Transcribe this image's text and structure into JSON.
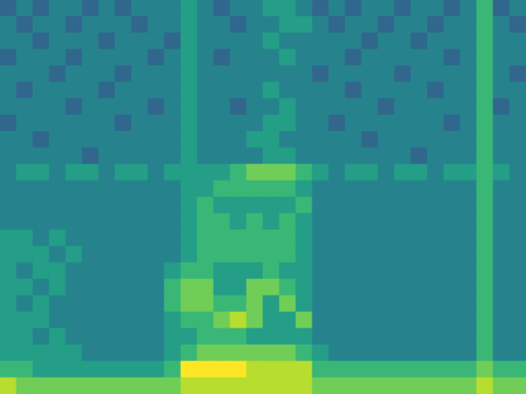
{
  "chart_data": {
    "type": "heatmap",
    "tick_labels": false,
    "grid": false,
    "cells": [
      [
        3,
        4,
        3,
        4,
        4,
        3,
        4,
        3,
        4,
        4,
        4,
        5,
        4,
        3,
        4,
        4,
        5,
        5,
        4,
        3,
        4,
        3,
        4,
        4,
        3,
        4,
        4,
        3,
        4,
        6,
        3,
        4
      ],
      [
        4,
        3,
        4,
        4,
        3,
        4,
        4,
        4,
        3,
        4,
        4,
        5,
        4,
        4,
        3,
        4,
        4,
        5,
        5,
        4,
        3,
        4,
        4,
        3,
        4,
        4,
        3,
        4,
        4,
        6,
        4,
        3
      ],
      [
        4,
        4,
        3,
        4,
        4,
        4,
        3,
        4,
        4,
        4,
        3,
        5,
        4,
        4,
        4,
        4,
        5,
        4,
        4,
        4,
        4,
        4,
        3,
        4,
        4,
        3,
        4,
        4,
        4,
        6,
        4,
        4
      ],
      [
        3,
        4,
        4,
        4,
        3,
        4,
        4,
        4,
        4,
        3,
        4,
        5,
        4,
        3,
        4,
        4,
        4,
        5,
        4,
        4,
        4,
        3,
        4,
        4,
        4,
        4,
        4,
        3,
        4,
        6,
        4,
        4
      ],
      [
        4,
        4,
        4,
        3,
        4,
        4,
        4,
        3,
        4,
        4,
        4,
        5,
        4,
        4,
        4,
        4,
        4,
        4,
        4,
        3,
        4,
        4,
        4,
        4,
        3,
        4,
        4,
        4,
        4,
        6,
        4,
        3
      ],
      [
        4,
        3,
        4,
        4,
        4,
        4,
        3,
        4,
        4,
        4,
        4,
        5,
        4,
        4,
        4,
        4,
        5,
        4,
        4,
        4,
        4,
        3,
        4,
        4,
        4,
        4,
        3,
        4,
        4,
        6,
        4,
        4
      ],
      [
        4,
        4,
        4,
        4,
        3,
        4,
        4,
        4,
        4,
        3,
        4,
        5,
        4,
        4,
        3,
        4,
        4,
        5,
        4,
        4,
        4,
        4,
        4,
        3,
        4,
        4,
        4,
        4,
        4,
        6,
        3,
        4
      ],
      [
        3,
        4,
        4,
        4,
        4,
        4,
        4,
        3,
        4,
        4,
        4,
        5,
        4,
        4,
        4,
        4,
        5,
        5,
        4,
        4,
        3,
        4,
        4,
        4,
        4,
        4,
        4,
        3,
        4,
        6,
        4,
        4
      ],
      [
        4,
        4,
        3,
        4,
        4,
        4,
        4,
        4,
        4,
        4,
        4,
        5,
        4,
        4,
        4,
        5,
        5,
        4,
        4,
        4,
        4,
        4,
        3,
        4,
        4,
        4,
        4,
        4,
        4,
        6,
        4,
        4
      ],
      [
        4,
        4,
        4,
        4,
        4,
        3,
        4,
        4,
        4,
        4,
        4,
        5,
        4,
        4,
        4,
        4,
        5,
        5,
        4,
        4,
        4,
        4,
        4,
        4,
        4,
        3,
        4,
        4,
        4,
        6,
        4,
        4
      ],
      [
        4,
        5,
        5,
        4,
        5,
        5,
        4,
        5,
        5,
        4,
        5,
        5,
        5,
        5,
        6,
        7,
        7,
        7,
        6,
        5,
        4,
        5,
        5,
        4,
        5,
        5,
        4,
        5,
        5,
        6,
        5,
        4
      ],
      [
        4,
        4,
        4,
        4,
        4,
        4,
        4,
        4,
        4,
        4,
        4,
        5,
        5,
        6,
        6,
        6,
        6,
        6,
        5,
        4,
        4,
        4,
        4,
        4,
        4,
        4,
        4,
        4,
        4,
        6,
        4,
        4
      ],
      [
        4,
        4,
        4,
        4,
        4,
        4,
        4,
        4,
        4,
        4,
        4,
        5,
        6,
        5,
        5,
        5,
        5,
        5,
        6,
        4,
        4,
        4,
        4,
        4,
        4,
        4,
        4,
        4,
        4,
        6,
        4,
        4
      ],
      [
        4,
        4,
        4,
        4,
        4,
        4,
        4,
        4,
        4,
        4,
        4,
        5,
        6,
        6,
        5,
        6,
        5,
        6,
        5,
        4,
        4,
        4,
        4,
        4,
        4,
        4,
        4,
        4,
        4,
        6,
        4,
        4
      ],
      [
        5,
        5,
        4,
        5,
        4,
        4,
        4,
        4,
        4,
        4,
        4,
        5,
        6,
        6,
        6,
        6,
        6,
        6,
        5,
        4,
        4,
        4,
        4,
        4,
        4,
        4,
        4,
        4,
        4,
        6,
        4,
        4
      ],
      [
        5,
        5,
        5,
        4,
        5,
        4,
        4,
        4,
        4,
        4,
        4,
        5,
        6,
        6,
        6,
        6,
        6,
        6,
        5,
        4,
        4,
        4,
        4,
        4,
        4,
        4,
        4,
        4,
        4,
        6,
        4,
        4
      ],
      [
        5,
        4,
        5,
        5,
        4,
        4,
        4,
        4,
        4,
        4,
        5,
        6,
        6,
        5,
        5,
        5,
        6,
        5,
        5,
        4,
        4,
        4,
        4,
        4,
        4,
        4,
        4,
        4,
        4,
        6,
        4,
        4
      ],
      [
        5,
        5,
        4,
        5,
        4,
        4,
        4,
        4,
        4,
        4,
        6,
        7,
        7,
        5,
        5,
        7,
        7,
        6,
        5,
        4,
        4,
        4,
        4,
        4,
        4,
        4,
        4,
        4,
        4,
        6,
        4,
        4
      ],
      [
        5,
        4,
        5,
        4,
        4,
        4,
        4,
        4,
        4,
        4,
        6,
        7,
        7,
        6,
        6,
        7,
        5,
        7,
        5,
        4,
        4,
        4,
        4,
        4,
        4,
        4,
        4,
        4,
        4,
        6,
        4,
        4
      ],
      [
        5,
        5,
        5,
        4,
        4,
        4,
        4,
        4,
        4,
        4,
        5,
        6,
        6,
        7,
        8,
        7,
        5,
        5,
        7,
        4,
        4,
        4,
        4,
        4,
        4,
        4,
        4,
        4,
        4,
        6,
        4,
        4
      ],
      [
        5,
        5,
        4,
        5,
        4,
        4,
        4,
        4,
        4,
        4,
        5,
        5,
        6,
        6,
        6,
        5,
        5,
        5,
        5,
        4,
        4,
        4,
        4,
        4,
        4,
        4,
        4,
        4,
        4,
        6,
        4,
        4
      ],
      [
        5,
        5,
        5,
        5,
        5,
        4,
        4,
        4,
        4,
        4,
        5,
        6,
        7,
        7,
        7,
        7,
        7,
        7,
        6,
        5,
        4,
        4,
        4,
        4,
        4,
        4,
        4,
        4,
        4,
        6,
        4,
        4
      ],
      [
        6,
        6,
        5,
        5,
        5,
        5,
        5,
        5,
        5,
        5,
        6,
        9,
        9,
        9,
        9,
        8,
        8,
        8,
        8,
        6,
        6,
        6,
        6,
        6,
        6,
        6,
        6,
        6,
        6,
        7,
        6,
        6
      ],
      [
        8,
        7,
        7,
        7,
        7,
        7,
        7,
        7,
        7,
        7,
        7,
        8,
        8,
        8,
        8,
        8,
        8,
        8,
        8,
        7,
        7,
        7,
        7,
        7,
        7,
        7,
        7,
        7,
        7,
        8,
        7,
        7
      ]
    ]
  }
}
